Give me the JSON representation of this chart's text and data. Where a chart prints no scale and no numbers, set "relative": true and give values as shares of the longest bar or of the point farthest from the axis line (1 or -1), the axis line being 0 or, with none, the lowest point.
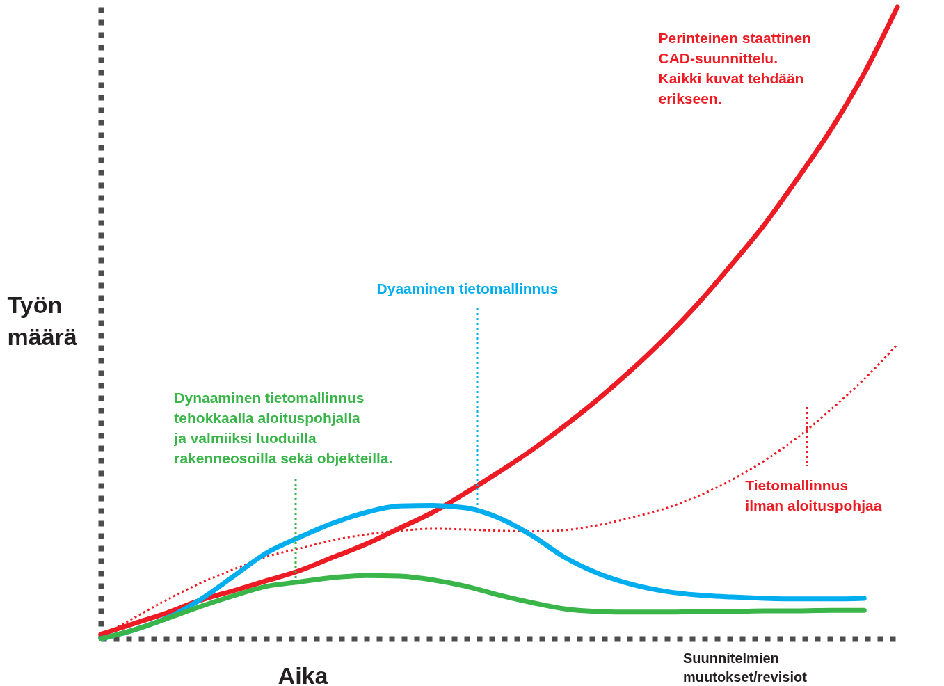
{
  "chart_data": {
    "type": "line",
    "relative": true,
    "xlabel": "Aika",
    "ylabel": "Työn määrä",
    "annotations": [
      "Suunnitelmien\nmuutokset/revisiot"
    ],
    "categories": [
      null,
      null,
      null,
      null,
      null,
      null,
      null,
      null,
      null,
      null,
      null,
      null,
      null,
      null,
      null,
      null,
      null,
      null,
      null,
      null,
      null,
      null,
      null,
      null,
      null
    ],
    "series": [
      {
        "name": "Perinteinen staattinen\nCAD-suunnittelu.\nKaikki kuvat tehdään\nerikseen.",
        "color": "#ed1c24",
        "values": [
          0.007,
          0.024,
          0.041,
          0.061,
          0.076,
          0.092,
          0.108,
          0.129,
          0.15,
          0.175,
          0.2,
          0.231,
          0.264,
          0.299,
          0.338,
          0.38,
          0.426,
          0.476,
          0.531,
          0.592,
          0.656,
          0.729,
          0.806,
          0.895,
          1
        ]
      },
      {
        "name": "Tietomallinnus\nilman aloituspohjaa",
        "color": "#ed1c24",
        "line_style": "dotted",
        "values": [
          0.003,
          0.033,
          0.062,
          0.088,
          0.11,
          0.13,
          0.143,
          0.156,
          0.165,
          0.171,
          0.174,
          0.173,
          0.171,
          0.17,
          0.172,
          0.18,
          0.192,
          0.206,
          0.226,
          0.251,
          0.282,
          0.319,
          0.363,
          0.411,
          0.466
        ]
      },
      {
        "name": "Dyaaminen tietomallinnus",
        "color": "#00aeef",
        "values": [
          0,
          0.014,
          0.033,
          0.062,
          0.099,
          0.136,
          0.161,
          0.183,
          0.2,
          0.21,
          0.211,
          0.207,
          0.191,
          0.163,
          0.128,
          0.103,
          0.086,
          0.075,
          0.069,
          0.066,
          0.064,
          0.063,
          0.063,
          0.064,
          null
        ]
      },
      {
        "name": "Dynaaminen tietomallinnus\ntehokkaalla aloituspohjalla\nja valmiiksi luoduilla\nrakenneosoilla sekä objekteilla.",
        "color": "#39b54a",
        "values": [
          0,
          0.014,
          0.032,
          0.051,
          0.068,
          0.083,
          0.09,
          0.097,
          0.1,
          0.099,
          0.093,
          0.083,
          0.069,
          0.057,
          0.047,
          0.043,
          0.042,
          0.042,
          0.043,
          0.043,
          0.044,
          0.044,
          0.045,
          0.045,
          null
        ]
      }
    ]
  }
}
